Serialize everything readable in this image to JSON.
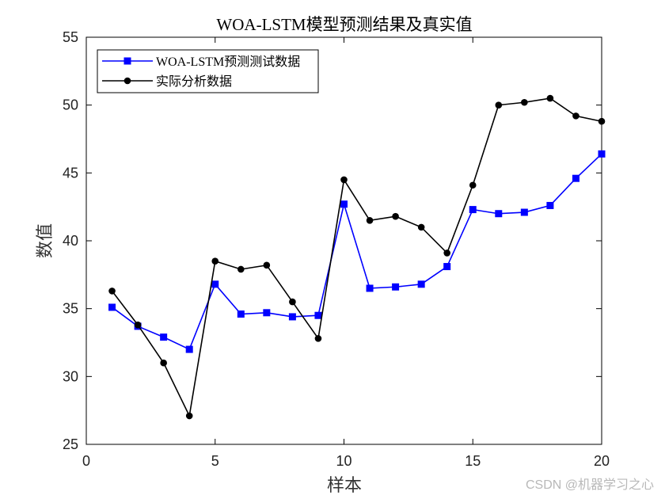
{
  "chart_data": {
    "type": "line",
    "title": "WOA-LSTM模型预测结果及真实值",
    "xlabel": "样本",
    "ylabel": "数值",
    "xlim": [
      0,
      20
    ],
    "ylim": [
      25,
      55
    ],
    "xticks": [
      "0",
      "5",
      "10",
      "15",
      "20"
    ],
    "yticks": [
      "25",
      "30",
      "35",
      "40",
      "45",
      "50",
      "55"
    ],
    "grid": false,
    "legend_position": "top-left",
    "x": [
      1,
      2,
      3,
      4,
      5,
      6,
      7,
      8,
      9,
      10,
      11,
      12,
      13,
      14,
      15,
      16,
      17,
      18,
      19,
      20
    ],
    "series": [
      {
        "name": "WOA-LSTM预测测试数据",
        "color": "#0000ff",
        "marker": "square",
        "values": [
          35.1,
          33.7,
          32.9,
          32.0,
          36.8,
          34.6,
          34.7,
          34.4,
          34.5,
          42.7,
          36.5,
          36.6,
          36.8,
          38.1,
          42.3,
          42.0,
          42.1,
          42.6,
          44.6,
          46.4
        ]
      },
      {
        "name": "实际分析数据",
        "color": "#000000",
        "marker": "circle",
        "values": [
          36.3,
          33.8,
          31.0,
          27.1,
          38.5,
          37.9,
          38.2,
          35.5,
          32.8,
          44.5,
          41.5,
          41.8,
          41.0,
          39.1,
          44.1,
          50.0,
          50.2,
          50.5,
          49.2,
          48.8
        ]
      }
    ]
  },
  "watermark": "CSDN @机器学习之心"
}
